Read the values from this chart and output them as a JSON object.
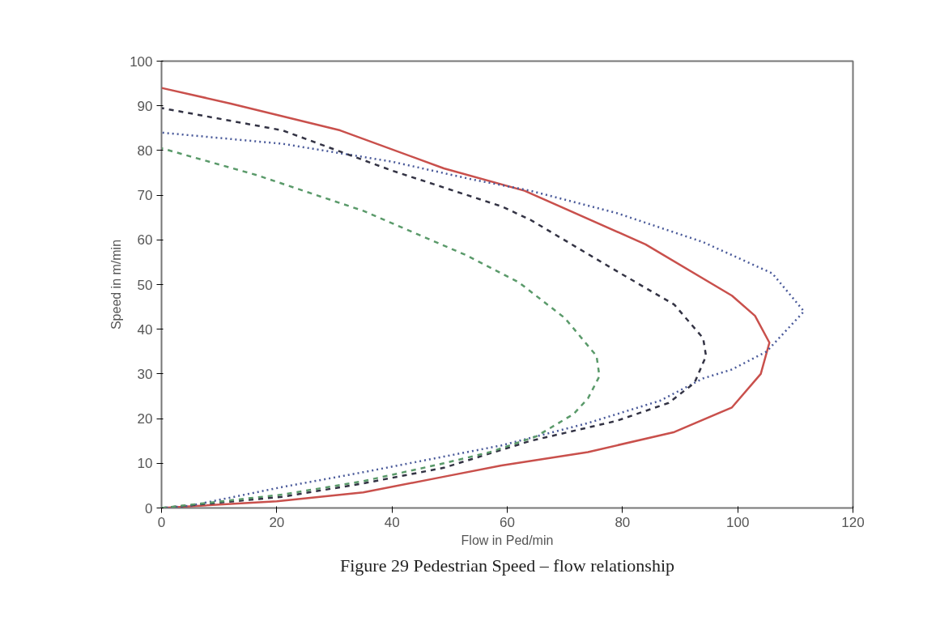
{
  "chart_data": {
    "type": "line",
    "xlabel": "Flow in Ped/min",
    "ylabel": "Speed in m/min",
    "annotations": [
      "Figure 29 Pedestrian Speed – flow relationship"
    ],
    "xlim": [
      0,
      120
    ],
    "xticks": [
      0,
      20,
      40,
      60,
      80,
      100,
      120
    ],
    "ylim": [
      0,
      100
    ],
    "yticks": [
      0,
      10,
      20,
      30,
      40,
      50,
      60,
      70,
      80,
      90,
      100
    ],
    "grid": false,
    "marker": "none",
    "series": [
      {
        "color": "#c9504c",
        "line_style": "solid",
        "x": [
          0,
          20,
          35,
          49,
          59,
          74,
          89,
          99,
          104,
          105.5,
          103,
          99,
          84,
          63,
          49,
          31,
          12,
          0
        ],
        "values": [
          0,
          1.5,
          3.5,
          7,
          9.5,
          12.5,
          17,
          22.5,
          30,
          37,
          43,
          47.5,
          59,
          71,
          76,
          84.5,
          90.5,
          94
        ]
      },
      {
        "color": "#4a5a9a",
        "line_style": "dotted",
        "x": [
          0,
          5,
          21,
          35,
          49,
          59,
          74,
          86.5,
          94,
          99,
          105,
          111.5,
          106,
          94,
          79,
          64,
          54,
          40,
          21,
          0
        ],
        "values": [
          0,
          0.5,
          4.7,
          8,
          11.5,
          14,
          19,
          24,
          29,
          31,
          35,
          44,
          52.5,
          59.5,
          66,
          71,
          73.5,
          77.5,
          81.5,
          84
        ]
      },
      {
        "color": "#333344",
        "line_style": "dashed",
        "x": [
          0,
          21,
          35,
          49,
          64,
          79,
          88,
          92.5,
          94.5,
          94,
          89,
          79,
          64,
          59,
          40,
          21,
          0
        ],
        "values": [
          0,
          2.5,
          5.5,
          9,
          15,
          19.5,
          23.5,
          28,
          34,
          38,
          45.5,
          53,
          64.5,
          67.5,
          75.5,
          84.5,
          89.5
        ]
      },
      {
        "color": "#5a9a6a",
        "line_style": "dashed",
        "x": [
          0,
          21,
          35,
          49,
          57,
          65,
          71.5,
          74,
          76,
          75.5,
          70,
          62,
          53,
          35,
          16.5,
          0
        ],
        "values": [
          0,
          3,
          6,
          10,
          12.5,
          16,
          21,
          24.5,
          29.5,
          34,
          42.5,
          50.5,
          56.5,
          66.5,
          74.5,
          80.5
        ]
      }
    ]
  }
}
